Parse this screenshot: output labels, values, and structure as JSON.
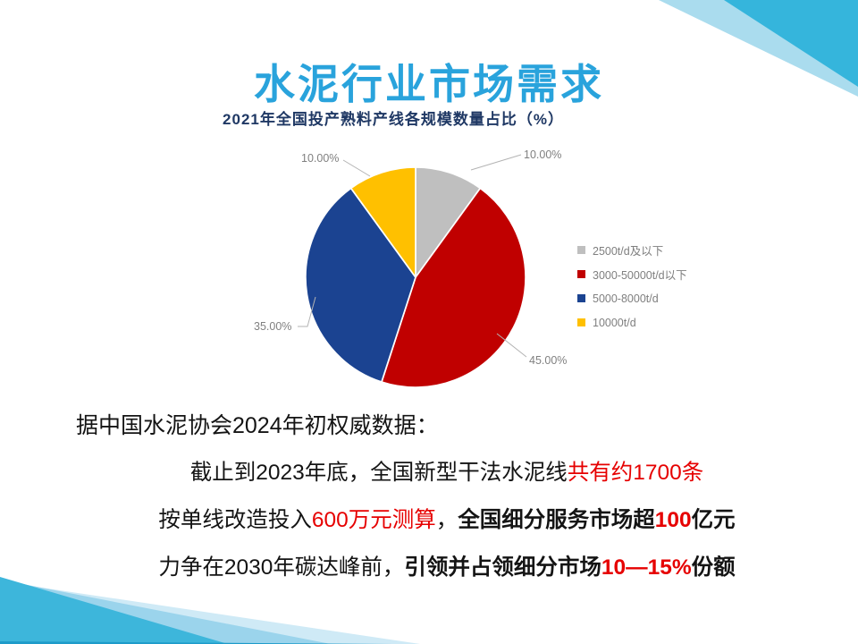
{
  "slide": {
    "title": "水泥行业市场需求"
  },
  "chart_data": {
    "type": "pie",
    "title": "2021年全国投产熟料产线各规模数量占比（%）",
    "categories": [
      "2500t/d及以下",
      "3000-50000t/d以下",
      "5000-8000t/d",
      "10000t/d"
    ],
    "values": [
      10,
      45,
      35,
      10
    ],
    "labels": [
      "10.00%",
      "45.00%",
      "35.00%",
      "10.00%"
    ],
    "colors": [
      "#bfbfbf",
      "#c00000",
      "#1b4391",
      "#ffc000"
    ],
    "start_angle_deg": 0,
    "direction": "clockwise",
    "legend_position": "right",
    "label_color": "#808080"
  },
  "body": {
    "intro": "据中国水泥协会2024年初权威数据：",
    "lines": [
      {
        "segments": [
          {
            "t": "截止到2023年底，全国新型干法水泥线",
            "red": false,
            "bold": false
          },
          {
            "t": "共有约1700条",
            "red": true,
            "bold": false
          }
        ]
      },
      {
        "segments": [
          {
            "t": "按单线改造投入",
            "red": false,
            "bold": false
          },
          {
            "t": "600万元测算",
            "red": true,
            "bold": false
          },
          {
            "t": "，",
            "red": false,
            "bold": false
          },
          {
            "t": "全国细分服务市场超",
            "red": false,
            "bold": true
          },
          {
            "t": "100",
            "red": true,
            "bold": true
          },
          {
            "t": "亿元",
            "red": false,
            "bold": true
          }
        ]
      },
      {
        "segments": [
          {
            "t": "力争在2030年碳达峰前，",
            "red": false,
            "bold": false
          },
          {
            "t": "引领并占领细分市场",
            "red": false,
            "bold": true
          },
          {
            "t": "10—15%",
            "red": true,
            "bold": true
          },
          {
            "t": "份额",
            "red": false,
            "bold": true
          }
        ]
      }
    ]
  },
  "accents": {
    "title_blue": "#29a3dc",
    "chart_title_navy": "#1f3864",
    "text_red": "#e60000",
    "deco_teal": "#35b5dc",
    "deco_light_blue": "#aadcee",
    "deco_very_light": "#cfeaf6",
    "deco_dark_strip": "#1e9bc9"
  }
}
